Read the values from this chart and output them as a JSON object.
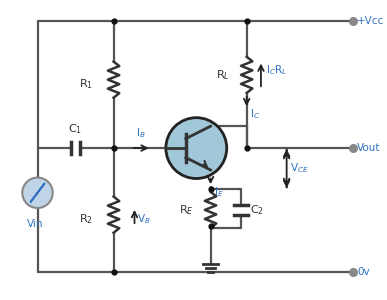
{
  "bg_color": "#ffffff",
  "wire_color": "#555555",
  "comp_color": "#333333",
  "label_color": "#3070c0",
  "terminal_color": "#888888",
  "transistor_fill": "#a0c8d8",
  "transistor_edge": "#222222",
  "vcc_label": "+Vcc",
  "vout_label": "Vout",
  "ov_label": "0v",
  "vin_label": "Vin"
}
